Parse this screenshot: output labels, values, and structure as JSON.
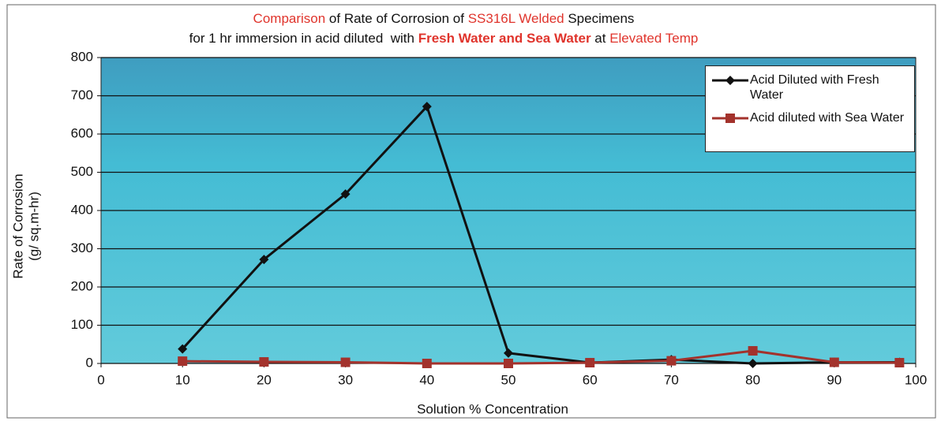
{
  "chart_data": {
    "type": "line",
    "title_lines": [
      [
        {
          "text": "Comparison",
          "color": "#e0342c",
          "bold": false
        },
        {
          "text": " of Rate of Corrosion of ",
          "color": "#111111",
          "bold": false
        },
        {
          "text": "SS316L Welded",
          "color": "#e0342c",
          "bold": false
        },
        {
          "text": " Specimens",
          "color": "#111111",
          "bold": false
        }
      ],
      [
        {
          "text": "for 1 hr immersion in acid diluted  with ",
          "color": "#111111",
          "bold": false
        },
        {
          "text": "Fresh Water and Sea Water",
          "color": "#e0342c",
          "bold": true
        },
        {
          "text": " at ",
          "color": "#111111",
          "bold": false
        },
        {
          "text": "Elevated Temp",
          "color": "#e0342c",
          "bold": false
        }
      ]
    ],
    "ylabel": [
      "Rate of Corrosion",
      "(g/ sq.m-hr)"
    ],
    "xlabel": "Solution % Concentration",
    "x": [
      10,
      20,
      30,
      40,
      50,
      60,
      70,
      80,
      90,
      98
    ],
    "series": [
      {
        "name": "Acid Diluted with Fresh Water",
        "color": "#111111",
        "marker": "diamond",
        "values": [
          38,
          272,
          443,
          672,
          27,
          2,
          10,
          0,
          3,
          3
        ]
      },
      {
        "name": "Acid diluted with Sea Water",
        "color": "#a3322c",
        "marker": "square",
        "values": [
          6,
          4,
          3,
          0,
          0,
          2,
          7,
          33,
          3,
          2
        ]
      }
    ],
    "xlim": [
      0,
      100
    ],
    "xticks": [
      0,
      10,
      20,
      30,
      40,
      50,
      60,
      70,
      80,
      90,
      100
    ],
    "ylim": [
      0,
      800
    ],
    "yticks": [
      0,
      100,
      200,
      300,
      400,
      500,
      600,
      700,
      800
    ],
    "grid": true,
    "legend": "upper right"
  }
}
